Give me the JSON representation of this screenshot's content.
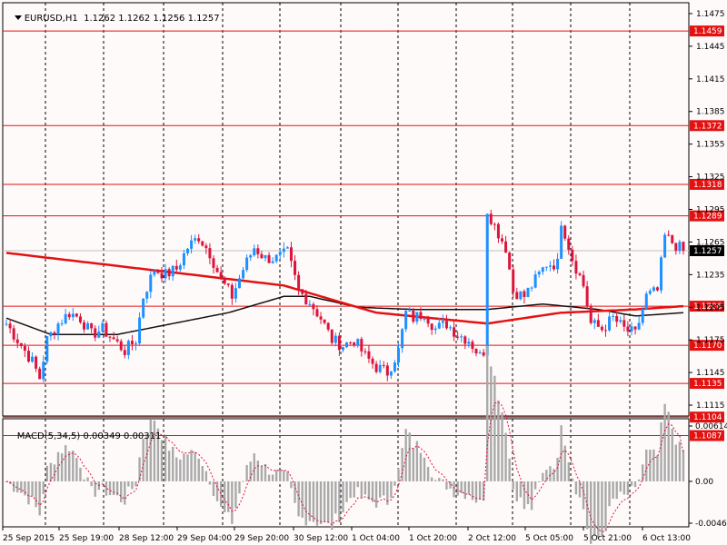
{
  "header": {
    "symbol": "EURUSD,H1",
    "ohlc": "1.1262 1.1262 1.1256 1.1257",
    "menu_icon": "triangle-down-icon"
  },
  "macd_header": {
    "label": "MACD(5,34,5)",
    "values": "0.00349 0.00311"
  },
  "colors": {
    "background": "#fffafa",
    "bull_candle": "#1e90ff",
    "bear_candle": "#dc143c",
    "ma_fast": "#e31212",
    "ma_slow": "#111111",
    "levels": "#e31212",
    "level_label_bg": "#e31212",
    "grid": "#000000",
    "histogram": "#a9a9a9",
    "signal": "#dc143c"
  },
  "chart_data": [
    {
      "type": "candlestick",
      "symbol": "EURUSD",
      "timeframe": "H1",
      "ylim": [
        1.1105,
        1.1485
      ],
      "y_ticks": [
        "1.1475",
        "1.1445",
        "1.1415",
        "1.1385",
        "1.1355",
        "1.1325",
        "1.1295",
        "1.1265",
        "1.1235",
        "1.1205",
        "1.1175",
        "1.1145",
        "1.1115"
      ],
      "x_ticks": [
        "25 Sep 2015",
        "25 Sep 19:00",
        "28 Sep 12:00",
        "29 Sep 04:00",
        "29 Sep 20:00",
        "30 Sep 12:00",
        "1 Oct 04:00",
        "1 Oct 20:00",
        "2 Oct 12:00",
        "5 Oct 05:00",
        "5 Oct 21:00",
        "6 Oct 13:00"
      ],
      "levels": [
        "1.1459",
        "1.1372",
        "1.1318",
        "1.1289",
        "1.1206",
        "1.1170",
        "1.1135",
        "1.1104",
        "1.1087"
      ],
      "current_price": "1.1257",
      "keypoints_close": [
        [
          0,
          1.119
        ],
        [
          3,
          1.1175
        ],
        [
          7,
          1.1155
        ],
        [
          9,
          1.114
        ],
        [
          11,
          1.1175
        ],
        [
          14,
          1.119
        ],
        [
          17,
          1.12
        ],
        [
          20,
          1.1195
        ],
        [
          23,
          1.118
        ],
        [
          26,
          1.1185
        ],
        [
          29,
          1.1175
        ],
        [
          32,
          1.1165
        ],
        [
          35,
          1.1175
        ],
        [
          37,
          1.1215
        ],
        [
          40,
          1.124
        ],
        [
          43,
          1.1235
        ],
        [
          46,
          1.124
        ],
        [
          49,
          1.126
        ],
        [
          52,
          1.127
        ],
        [
          55,
          1.1255
        ],
        [
          58,
          1.123
        ],
        [
          61,
          1.1215
        ],
        [
          64,
          1.124
        ],
        [
          67,
          1.126
        ],
        [
          70,
          1.125
        ],
        [
          73,
          1.125
        ],
        [
          76,
          1.1255
        ],
        [
          79,
          1.122
        ],
        [
          82,
          1.121
        ],
        [
          85,
          1.1195
        ],
        [
          88,
          1.1175
        ],
        [
          91,
          1.117
        ],
        [
          94,
          1.1175
        ],
        [
          97,
          1.116
        ],
        [
          100,
          1.115
        ],
        [
          103,
          1.1145
        ],
        [
          106,
          1.1165
        ],
        [
          108,
          1.12
        ],
        [
          110,
          1.1195
        ],
        [
          113,
          1.12
        ],
        [
          116,
          1.1185
        ],
        [
          119,
          1.119
        ],
        [
          122,
          1.118
        ],
        [
          125,
          1.1175
        ],
        [
          128,
          1.116
        ],
        [
          129,
          1.1165
        ],
        [
          130,
          1.1295
        ],
        [
          132,
          1.128
        ],
        [
          135,
          1.126
        ],
        [
          137,
          1.122
        ],
        [
          140,
          1.1215
        ],
        [
          143,
          1.123
        ],
        [
          146,
          1.1245
        ],
        [
          149,
          1.1245
        ],
        [
          150,
          1.1285
        ],
        [
          153,
          1.125
        ],
        [
          156,
          1.1225
        ],
        [
          158,
          1.119
        ],
        [
          161,
          1.1185
        ],
        [
          164,
          1.1195
        ],
        [
          167,
          1.1185
        ],
        [
          170,
          1.118
        ],
        [
          173,
          1.1215
        ],
        [
          176,
          1.122
        ],
        [
          178,
          1.127
        ],
        [
          181,
          1.1262
        ],
        [
          183,
          1.1257
        ]
      ],
      "ma_fast_keypoints": [
        [
          0,
          1.1255
        ],
        [
          25,
          1.1245
        ],
        [
          50,
          1.1235
        ],
        [
          75,
          1.1225
        ],
        [
          90,
          1.121
        ],
        [
          100,
          1.12
        ],
        [
          115,
          1.1195
        ],
        [
          130,
          1.119
        ],
        [
          150,
          1.12
        ],
        [
          170,
          1.1203
        ],
        [
          183,
          1.1206
        ]
      ],
      "ma_slow_keypoints": [
        [
          0,
          1.1195
        ],
        [
          12,
          1.118
        ],
        [
          30,
          1.118
        ],
        [
          45,
          1.119
        ],
        [
          60,
          1.12
        ],
        [
          75,
          1.1215
        ],
        [
          82,
          1.1215
        ],
        [
          95,
          1.1205
        ],
        [
          110,
          1.1203
        ],
        [
          130,
          1.1203
        ],
        [
          145,
          1.1208
        ],
        [
          160,
          1.1203
        ],
        [
          170,
          1.1197
        ],
        [
          183,
          1.12
        ]
      ]
    },
    {
      "type": "bar",
      "name": "MACD",
      "ylim": [
        -0.00464,
        0.00614
      ],
      "y_ticks": [
        "0.00614",
        "0.00",
        "-0.00464"
      ],
      "last_value": 0.00349,
      "signal_last": 0.00311,
      "zero_line": 0.0
    }
  ]
}
